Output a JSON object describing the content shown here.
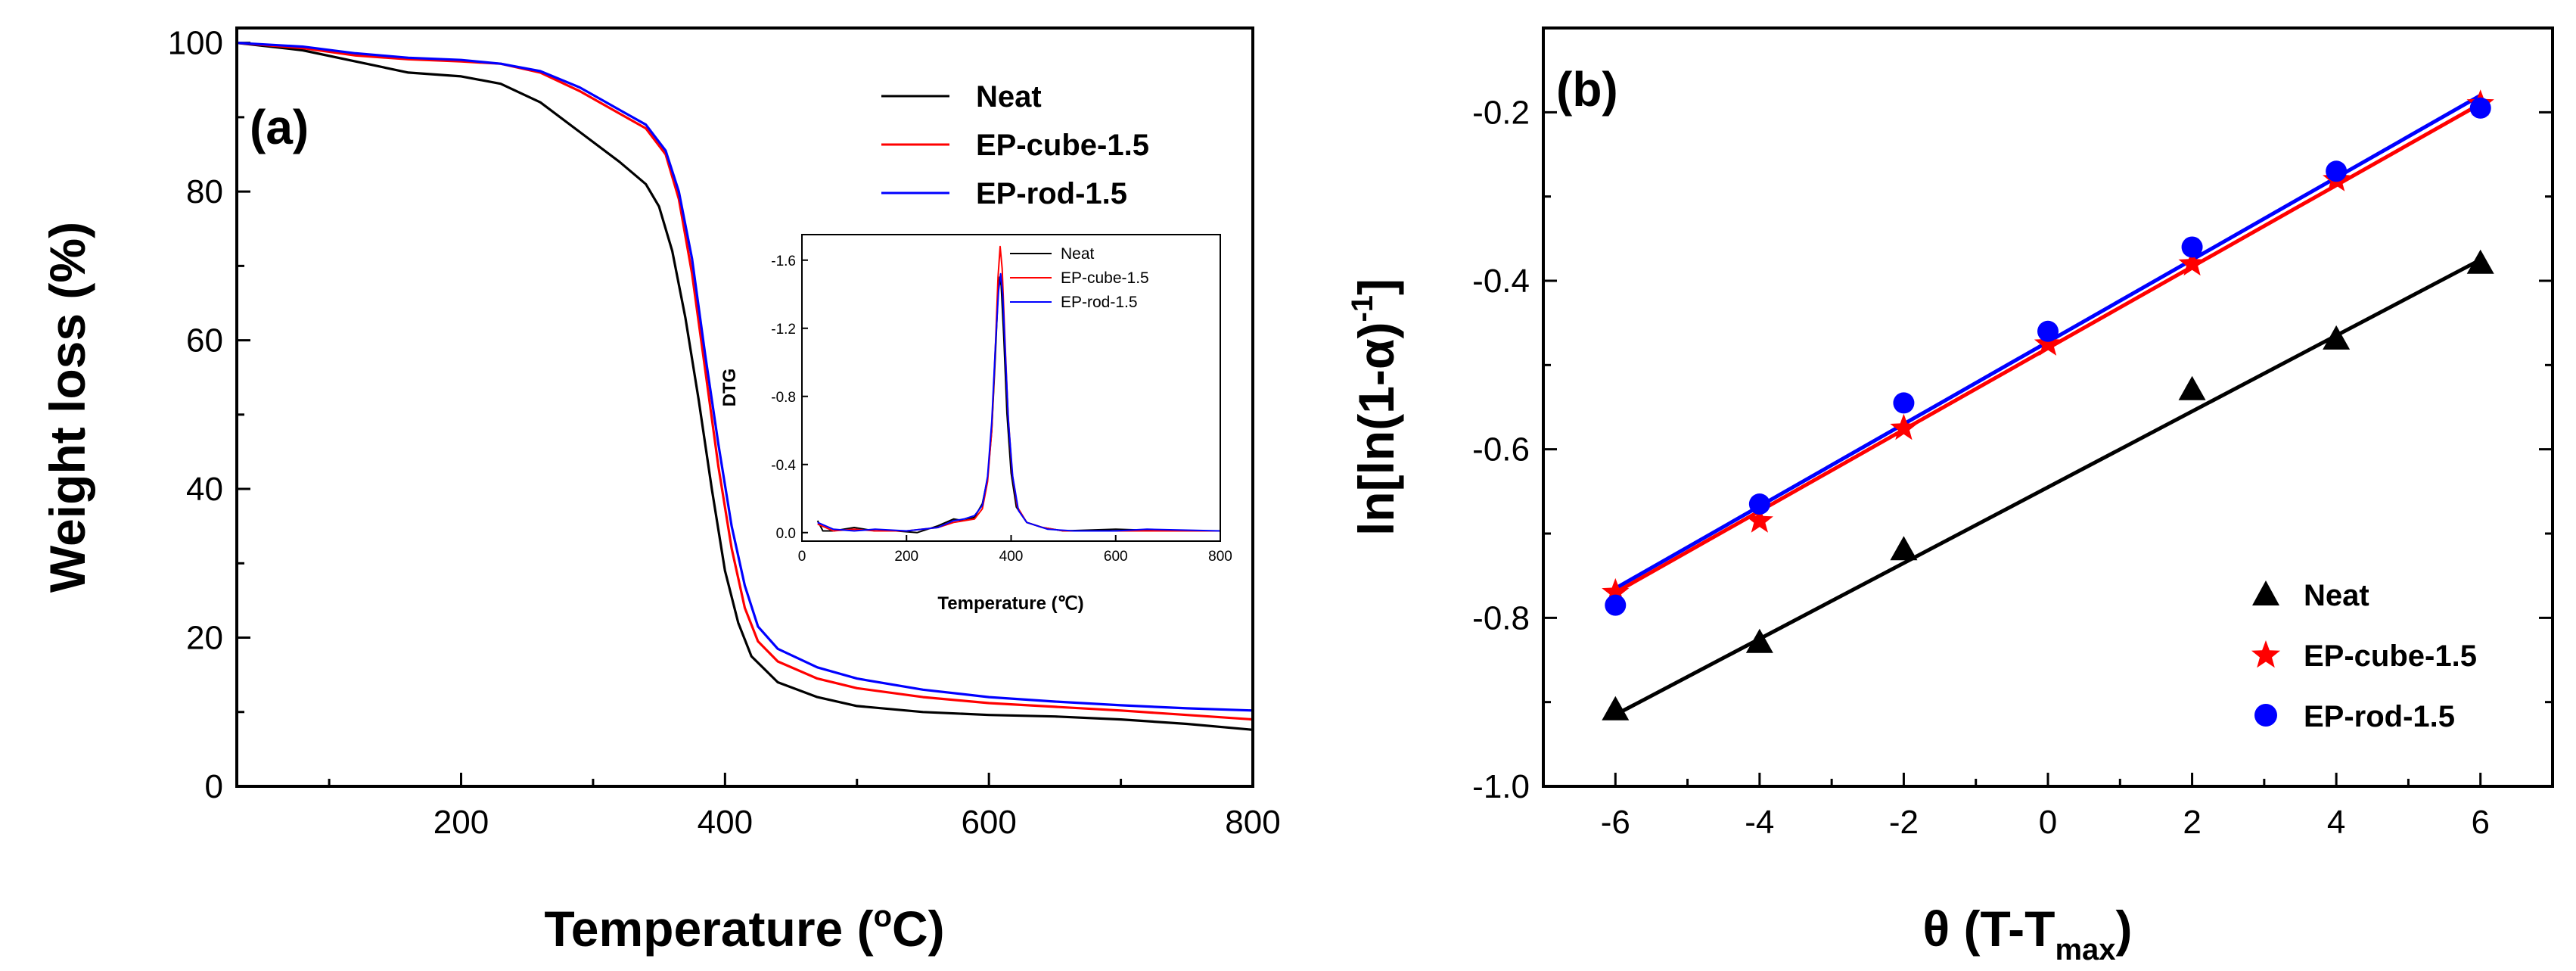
{
  "colors": {
    "neat": "#000000",
    "cube": "#ff0000",
    "rod": "#0000ff"
  },
  "chart_data": [
    {
      "panel_label": "(a)",
      "type": "line",
      "xlabel_main": "Temperature (",
      "xlabel_degree": "o",
      "xlabel_unit": "C)",
      "ylabel": "Weight loss (%)",
      "xlim": [
        30,
        800
      ],
      "ylim": [
        0,
        102
      ],
      "xticks": [
        200,
        400,
        600,
        800
      ],
      "yticks": [
        0,
        20,
        40,
        60,
        80,
        100
      ],
      "legend_position": "top-right",
      "series": [
        {
          "name": "Neat",
          "color_key": "neat",
          "points": [
            [
              30,
              100
            ],
            [
              80,
              99
            ],
            [
              120,
              97.5
            ],
            [
              160,
              96
            ],
            [
              200,
              95.5
            ],
            [
              230,
              94.5
            ],
            [
              260,
              92
            ],
            [
              290,
              88
            ],
            [
              320,
              84
            ],
            [
              340,
              81
            ],
            [
              350,
              78
            ],
            [
              360,
              72
            ],
            [
              370,
              63
            ],
            [
              380,
              52
            ],
            [
              390,
              40
            ],
            [
              400,
              29
            ],
            [
              410,
              22
            ],
            [
              420,
              17.5
            ],
            [
              440,
              14
            ],
            [
              470,
              12
            ],
            [
              500,
              10.8
            ],
            [
              550,
              10
            ],
            [
              600,
              9.6
            ],
            [
              650,
              9.4
            ],
            [
              700,
              9
            ],
            [
              750,
              8.4
            ],
            [
              800,
              7.6
            ]
          ]
        },
        {
          "name": "EP-cube-1.5",
          "color_key": "cube",
          "points": [
            [
              30,
              100
            ],
            [
              80,
              99.3
            ],
            [
              120,
              98.3
            ],
            [
              160,
              97.8
            ],
            [
              200,
              97.5
            ],
            [
              230,
              97.2
            ],
            [
              260,
              96
            ],
            [
              290,
              93.5
            ],
            [
              320,
              90.5
            ],
            [
              340,
              88.5
            ],
            [
              355,
              85
            ],
            [
              365,
              79
            ],
            [
              375,
              69
            ],
            [
              385,
              56
            ],
            [
              395,
              43
            ],
            [
              405,
              32
            ],
            [
              415,
              24
            ],
            [
              425,
              19.5
            ],
            [
              440,
              16.8
            ],
            [
              470,
              14.5
            ],
            [
              500,
              13.2
            ],
            [
              550,
              12
            ],
            [
              600,
              11.2
            ],
            [
              650,
              10.7
            ],
            [
              700,
              10.2
            ],
            [
              750,
              9.6
            ],
            [
              800,
              9
            ]
          ]
        },
        {
          "name": "EP-rod-1.5",
          "color_key": "rod",
          "points": [
            [
              30,
              100
            ],
            [
              80,
              99.5
            ],
            [
              120,
              98.6
            ],
            [
              160,
              98
            ],
            [
              200,
              97.7
            ],
            [
              230,
              97.2
            ],
            [
              260,
              96.2
            ],
            [
              290,
              94
            ],
            [
              320,
              91
            ],
            [
              340,
              89
            ],
            [
              355,
              85.5
            ],
            [
              365,
              80
            ],
            [
              375,
              71
            ],
            [
              385,
              58
            ],
            [
              395,
              46
            ],
            [
              405,
              35
            ],
            [
              415,
              27
            ],
            [
              425,
              21.5
            ],
            [
              440,
              18.5
            ],
            [
              470,
              16
            ],
            [
              500,
              14.5
            ],
            [
              550,
              13
            ],
            [
              600,
              12
            ],
            [
              650,
              11.4
            ],
            [
              700,
              10.9
            ],
            [
              750,
              10.5
            ],
            [
              800,
              10.2
            ]
          ]
        }
      ]
    },
    {
      "panel_label": "inset",
      "type": "line",
      "xlabel": "Temperature (℃)",
      "ylabel": "DTG",
      "xlim": [
        0,
        800
      ],
      "ylim": [
        0.05,
        -1.75
      ],
      "xticks": [
        0,
        200,
        400,
        600,
        800
      ],
      "yticks": [
        0.0,
        -0.4,
        -0.8,
        -1.2,
        -1.6
      ],
      "ytick_labels": [
        "0.0",
        "-0.4",
        "-0.8",
        "-1.2",
        "-1.6"
      ],
      "legend_position": "top-right",
      "series": [
        {
          "name": "Neat",
          "color_key": "neat",
          "points": [
            [
              30,
              -0.07
            ],
            [
              40,
              -0.01
            ],
            [
              60,
              -0.01
            ],
            [
              100,
              -0.03
            ],
            [
              140,
              -0.01
            ],
            [
              180,
              -0.01
            ],
            [
              220,
              0.0
            ],
            [
              260,
              -0.04
            ],
            [
              290,
              -0.08
            ],
            [
              310,
              -0.07
            ],
            [
              330,
              -0.09
            ],
            [
              345,
              -0.17
            ],
            [
              355,
              -0.32
            ],
            [
              363,
              -0.6
            ],
            [
              370,
              -1.05
            ],
            [
              375,
              -1.4
            ],
            [
              378,
              -1.5
            ],
            [
              381,
              -1.45
            ],
            [
              386,
              -1.15
            ],
            [
              392,
              -0.7
            ],
            [
              400,
              -0.35
            ],
            [
              410,
              -0.15
            ],
            [
              430,
              -0.06
            ],
            [
              460,
              -0.03
            ],
            [
              500,
              -0.01
            ],
            [
              600,
              -0.02
            ],
            [
              700,
              -0.01
            ],
            [
              800,
              -0.01
            ]
          ]
        },
        {
          "name": "EP-cube-1.5",
          "color_key": "cube",
          "points": [
            [
              30,
              -0.05
            ],
            [
              60,
              -0.01
            ],
            [
              100,
              -0.02
            ],
            [
              140,
              -0.01
            ],
            [
              200,
              -0.01
            ],
            [
              260,
              -0.03
            ],
            [
              290,
              -0.06
            ],
            [
              310,
              -0.07
            ],
            [
              330,
              -0.08
            ],
            [
              345,
              -0.14
            ],
            [
              355,
              -0.3
            ],
            [
              363,
              -0.6
            ],
            [
              370,
              -1.1
            ],
            [
              375,
              -1.5
            ],
            [
              379,
              -1.68
            ],
            [
              383,
              -1.55
            ],
            [
              388,
              -1.15
            ],
            [
              394,
              -0.7
            ],
            [
              402,
              -0.35
            ],
            [
              412,
              -0.15
            ],
            [
              430,
              -0.06
            ],
            [
              460,
              -0.03
            ],
            [
              500,
              -0.01
            ],
            [
              600,
              -0.01
            ],
            [
              800,
              -0.01
            ]
          ]
        },
        {
          "name": "EP-rod-1.5",
          "color_key": "rod",
          "points": [
            [
              30,
              -0.06
            ],
            [
              60,
              -0.02
            ],
            [
              100,
              -0.01
            ],
            [
              140,
              -0.02
            ],
            [
              200,
              -0.01
            ],
            [
              260,
              -0.03
            ],
            [
              290,
              -0.07
            ],
            [
              310,
              -0.08
            ],
            [
              330,
              -0.1
            ],
            [
              345,
              -0.16
            ],
            [
              355,
              -0.33
            ],
            [
              363,
              -0.65
            ],
            [
              370,
              -1.1
            ],
            [
              376,
              -1.42
            ],
            [
              380,
              -1.52
            ],
            [
              384,
              -1.4
            ],
            [
              389,
              -1.05
            ],
            [
              395,
              -0.65
            ],
            [
              403,
              -0.33
            ],
            [
              414,
              -0.13
            ],
            [
              430,
              -0.06
            ],
            [
              470,
              -0.02
            ],
            [
              520,
              -0.01
            ],
            [
              600,
              -0.01
            ],
            [
              660,
              -0.02
            ],
            [
              800,
              -0.01
            ]
          ]
        }
      ]
    },
    {
      "panel_label": "(b)",
      "type": "scatter",
      "xlabel_main": "θ (T-T",
      "xlabel_sub": "max",
      "xlabel_close": ")",
      "ylabel_main": "ln[ln(1-α)",
      "ylabel_sup": "-1",
      "ylabel_close": "]",
      "xlim": [
        -7,
        7
      ],
      "ylim": [
        -1.0,
        -0.1
      ],
      "xticks": [
        -6,
        -4,
        -2,
        0,
        2,
        4,
        6
      ],
      "yticks": [
        -1.0,
        -0.8,
        -0.6,
        -0.4,
        -0.2
      ],
      "ytick_labels": [
        "-1.0",
        "-0.8",
        "-0.6",
        "-0.4",
        "-0.2"
      ],
      "legend_position": "bottom-right",
      "series": [
        {
          "name": "Neat",
          "color_key": "neat",
          "marker": "triangle",
          "x": [
            -6,
            -4,
            -2,
            2,
            4,
            6
          ],
          "y": [
            -0.91,
            -0.83,
            -0.72,
            -0.53,
            -0.47,
            -0.38
          ],
          "fit": [
            [
              -6,
              -0.915
            ],
            [
              6,
              -0.375
            ]
          ]
        },
        {
          "name": "EP-cube-1.5",
          "color_key": "cube",
          "marker": "star",
          "x": [
            -6,
            -4,
            -2,
            0,
            2,
            4,
            6
          ],
          "y": [
            -0.77,
            -0.685,
            -0.575,
            -0.475,
            -0.38,
            -0.28,
            -0.19
          ],
          "fit": [
            [
              -6,
              -0.77
            ],
            [
              6,
              -0.19
            ]
          ]
        },
        {
          "name": "EP-rod-1.5",
          "color_key": "rod",
          "marker": "circle",
          "x": [
            -6,
            -4,
            -2,
            0,
            2,
            4,
            6
          ],
          "y": [
            -0.785,
            -0.665,
            -0.545,
            -0.46,
            -0.36,
            -0.27,
            -0.195
          ],
          "fit": [
            [
              -6,
              -0.765
            ],
            [
              6,
              -0.18
            ]
          ]
        }
      ]
    }
  ]
}
